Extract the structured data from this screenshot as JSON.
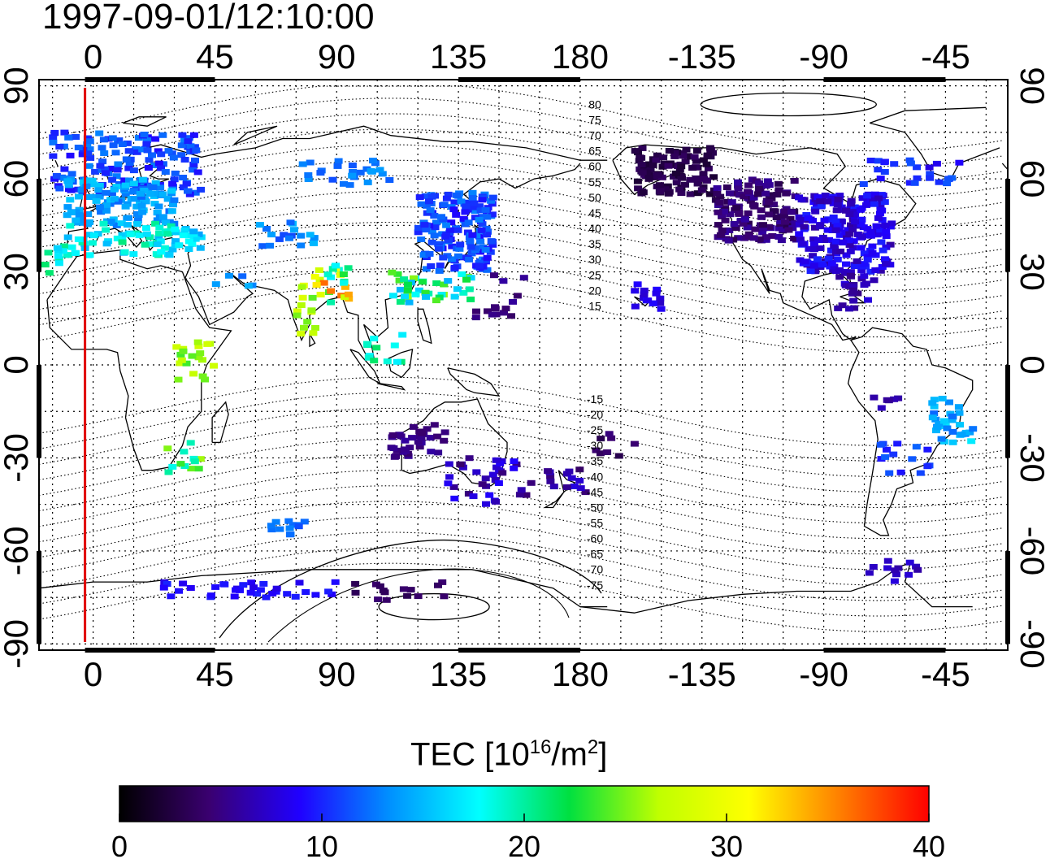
{
  "title": "1997-09-01/12:10:00",
  "map": {
    "lon_ticks": [
      "0",
      "45",
      "90",
      "135",
      "180",
      "-135",
      "-90",
      "-45"
    ],
    "lat_ticks": [
      "90",
      "60",
      "30",
      "0",
      "-30",
      "-60",
      "-90"
    ],
    "lon_range": [
      -20,
      338
    ],
    "lat_range": [
      -92,
      92
    ],
    "grid": "dotted 15 degree",
    "terminator_line_color": "#e00000",
    "terminator_lon": -3,
    "magnetic_contours_north": [
      "80",
      "75",
      "70",
      "65",
      "60",
      "55",
      "50",
      "45",
      "40",
      "35",
      "30",
      "25",
      "20",
      "15"
    ],
    "magnetic_contours_south": [
      "-15",
      "-20",
      "-25",
      "-30",
      "-35",
      "-40",
      "-45",
      "-50",
      "-55",
      "-60",
      "-65",
      "-70",
      "-75"
    ]
  },
  "colorbar": {
    "label_main": "TEC  [10",
    "label_exp1": "16",
    "label_mid": "/m",
    "label_exp2": "2",
    "label_end": "]",
    "ticks": [
      "0",
      "10",
      "20",
      "30",
      "40"
    ],
    "min": 0,
    "max": 40,
    "colormap": [
      "#000000",
      "#3a0070",
      "#2000ff",
      "#0090ff",
      "#00ffff",
      "#00e040",
      "#c0ff00",
      "#ffff00",
      "#ff8000",
      "#ff0000"
    ]
  }
}
